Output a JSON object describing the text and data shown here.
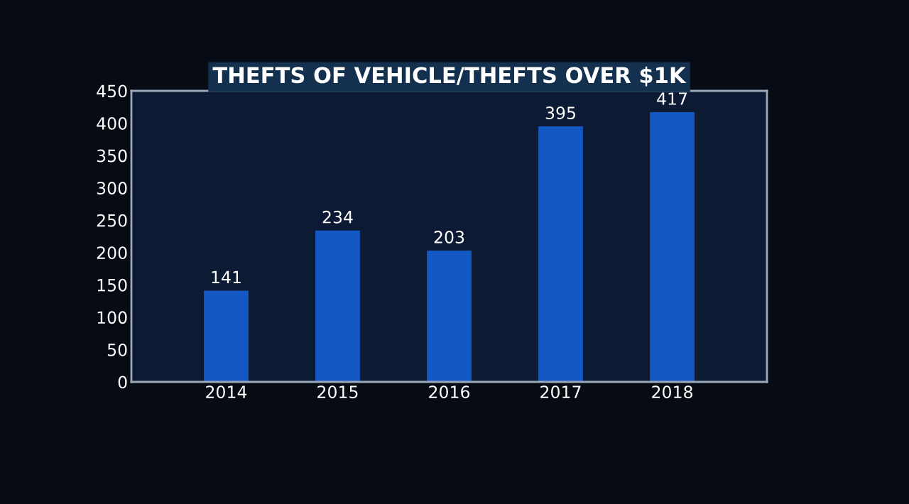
{
  "chart_data": {
    "type": "bar",
    "title": "THEFTS OF VEHICLE/THEFTS OVER $1K",
    "categories": [
      "2014",
      "2015",
      "2016",
      "2017",
      "2018"
    ],
    "values": [
      141,
      234,
      203,
      395,
      417
    ],
    "color": "#1458c4",
    "ylim": [
      0,
      450
    ],
    "yticks": [
      0,
      50,
      100,
      150,
      200,
      250,
      300,
      350,
      400,
      450
    ],
    "data_labels": true,
    "grid": false,
    "legend": false
  }
}
